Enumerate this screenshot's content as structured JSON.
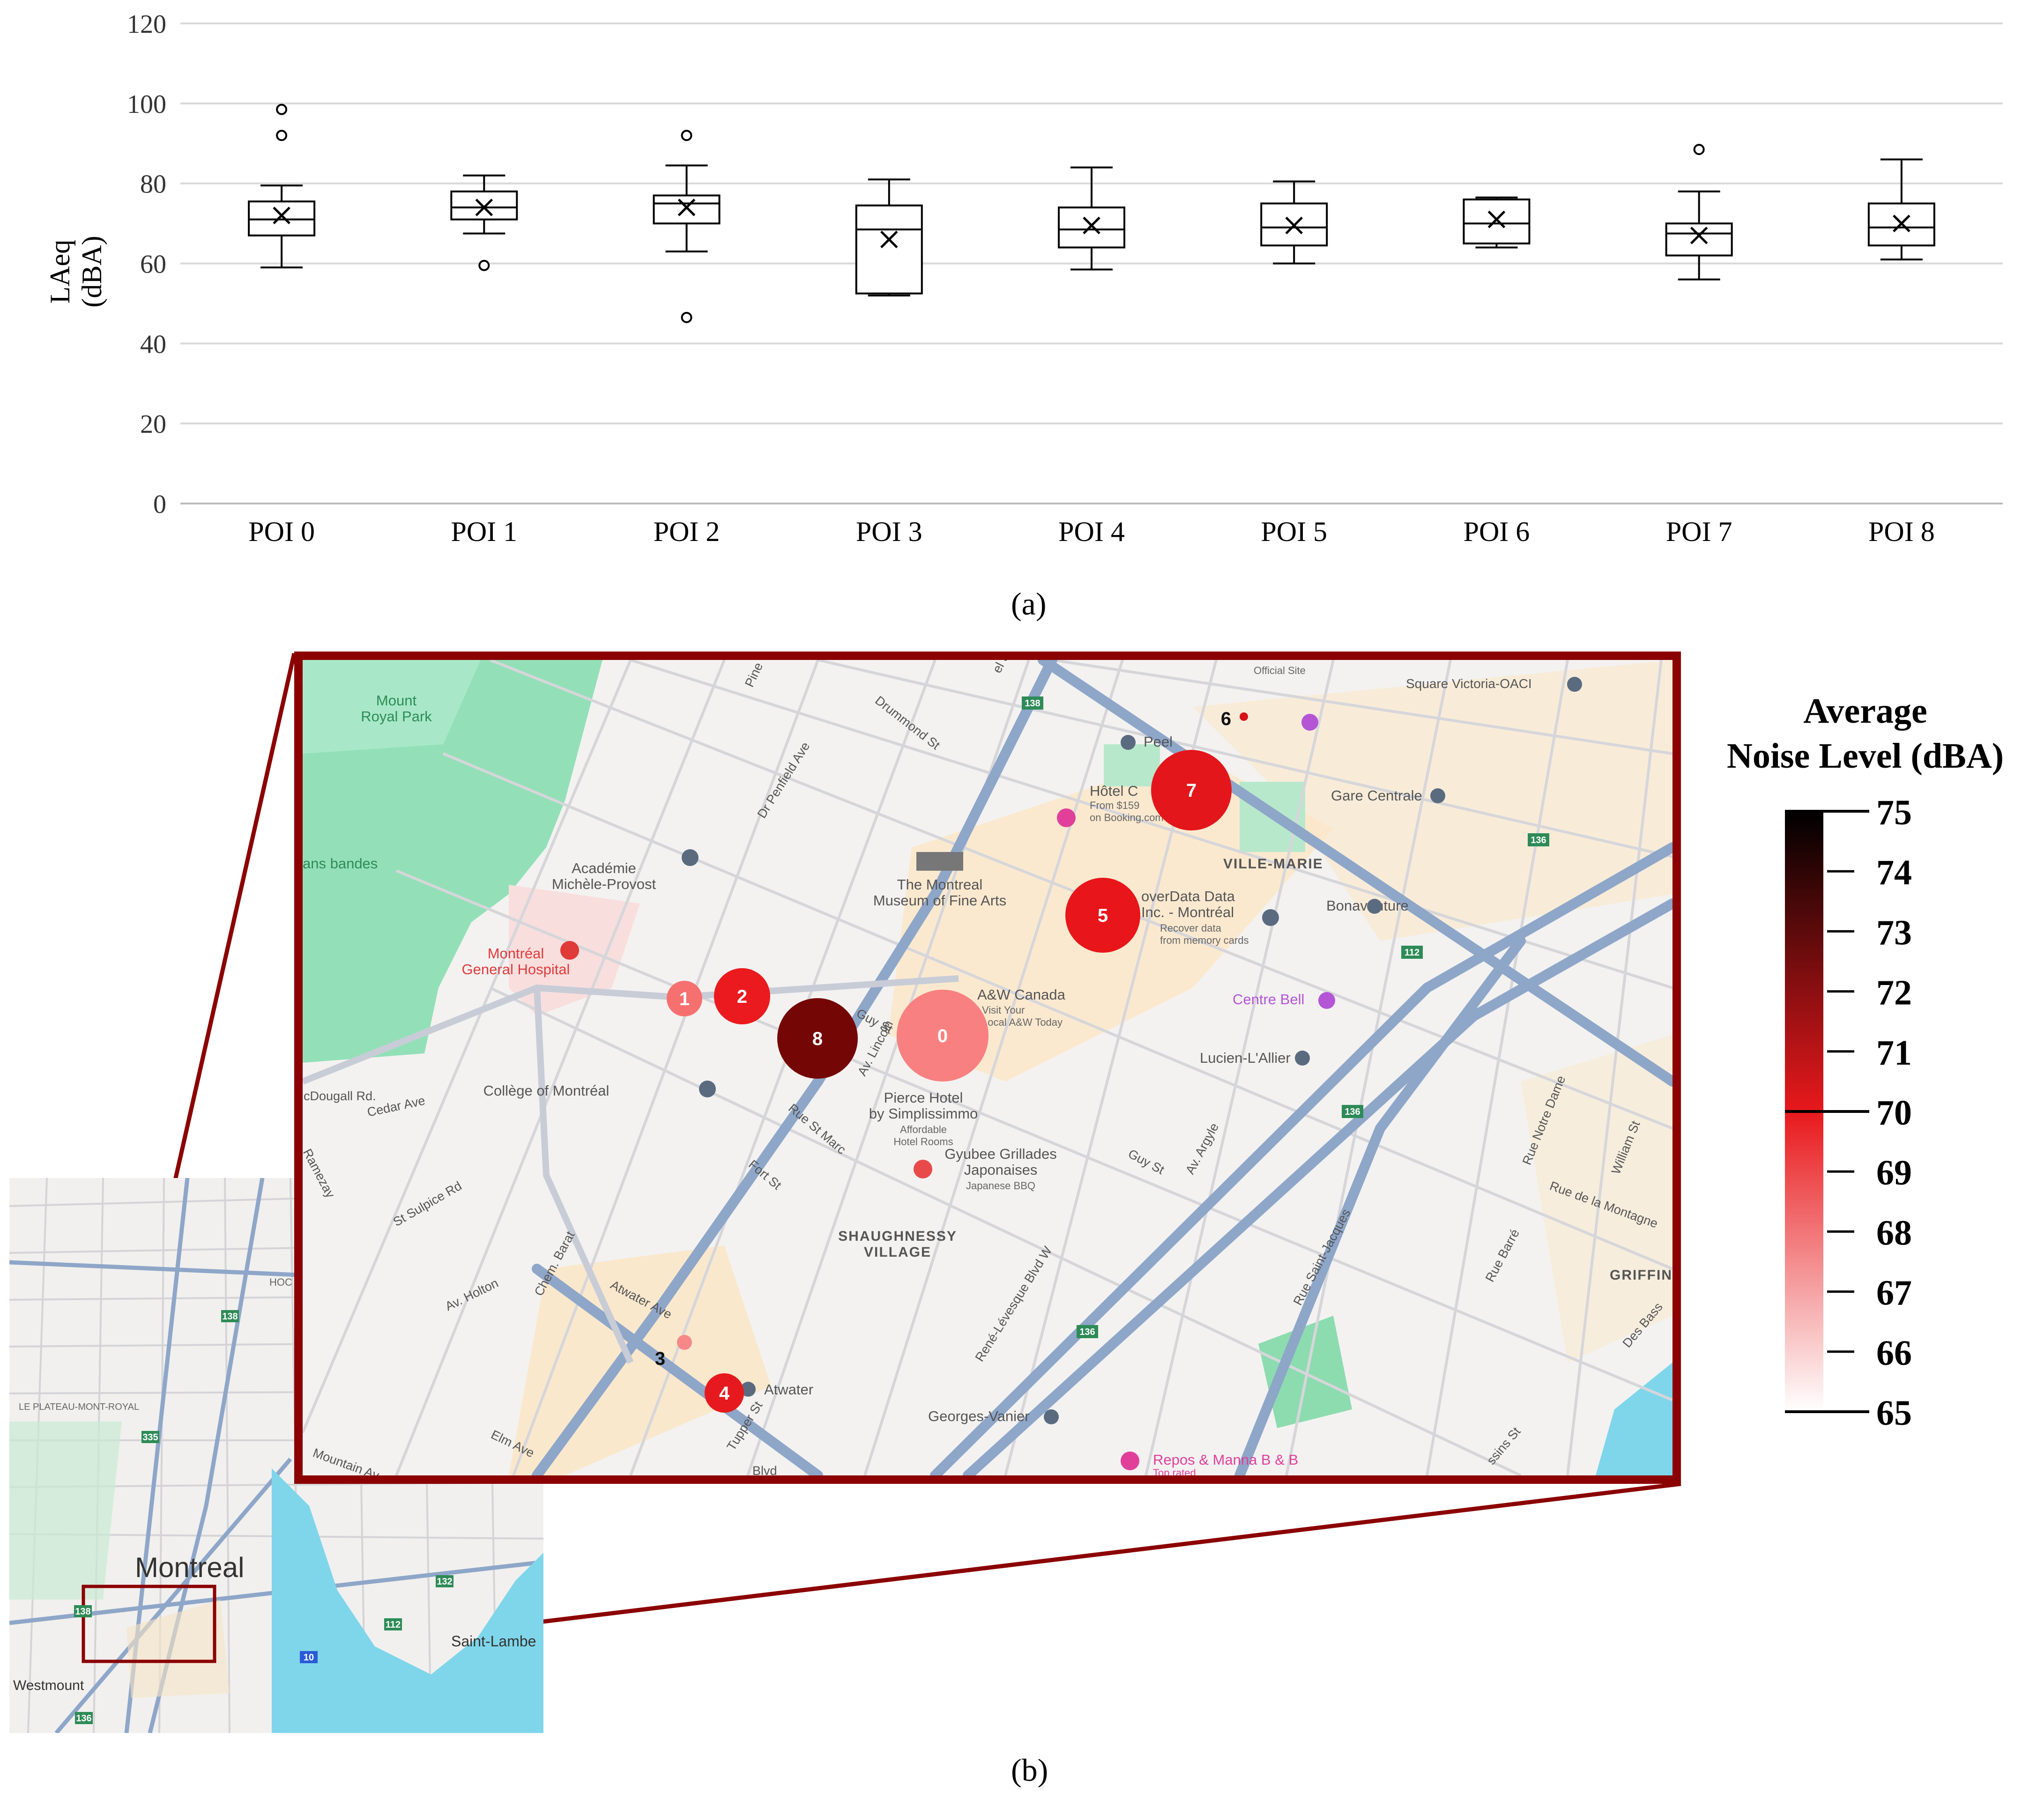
{
  "chart_data": {
    "type": "box",
    "title": "",
    "ylabel_line1": "LAeq",
    "ylabel_line2": "(dBA)",
    "ylim": [
      0,
      120
    ],
    "yticks": [
      0,
      20,
      40,
      60,
      80,
      100,
      120
    ],
    "grid": true,
    "categories": [
      "POI 0",
      "POI 1",
      "POI 2",
      "POI 3",
      "POI 4",
      "POI 5",
      "POI 6",
      "POI 7",
      "POI 8"
    ],
    "boxes": [
      {
        "min": 59,
        "q1": 67,
        "median": 71,
        "q3": 75.5,
        "max": 79.5,
        "mean": 72,
        "outliers": [
          92,
          98.5
        ]
      },
      {
        "min": 67.5,
        "q1": 71,
        "median": 74,
        "q3": 78,
        "max": 82,
        "mean": 74,
        "outliers": [
          59.5
        ]
      },
      {
        "min": 63,
        "q1": 70,
        "median": 75,
        "q3": 77,
        "max": 84.5,
        "mean": 74,
        "outliers": [
          46.5,
          92
        ]
      },
      {
        "min": 52,
        "q1": 52.5,
        "median": 68.5,
        "q3": 74.5,
        "max": 81,
        "mean": 66,
        "outliers": []
      },
      {
        "min": 58.5,
        "q1": 64,
        "median": 68.5,
        "q3": 74,
        "max": 84,
        "mean": 69.5,
        "outliers": []
      },
      {
        "min": 60,
        "q1": 64.5,
        "median": 69,
        "q3": 75,
        "max": 80.5,
        "mean": 69.5,
        "outliers": []
      },
      {
        "min": 64,
        "q1": 65,
        "median": 70,
        "q3": 76,
        "max": 76.5,
        "mean": 71,
        "outliers": []
      },
      {
        "min": 56,
        "q1": 62,
        "median": 67.5,
        "q3": 70,
        "max": 78,
        "mean": 67,
        "outliers": [
          88.5
        ]
      },
      {
        "min": 61,
        "q1": 64.5,
        "median": 69,
        "q3": 75,
        "max": 86,
        "mean": 70,
        "outliers": []
      }
    ]
  },
  "panels": {
    "a": "(a)",
    "b": "(b)"
  },
  "legend": {
    "title_line1": "Average",
    "title_line2": "Noise Level (dBA)",
    "ticks": [
      75,
      74,
      73,
      72,
      71,
      70,
      69,
      68,
      67,
      66,
      65
    ],
    "color_high": "#000000",
    "color_mid": "#e8191c",
    "color_low": "#ffffff"
  },
  "map": {
    "pois": [
      {
        "id": "0",
        "level": 67.5,
        "color": "#f98080"
      },
      {
        "id": "1",
        "level": 68,
        "color": "#f77070"
      },
      {
        "id": "2",
        "level": 70,
        "color": "#ea1a1e"
      },
      {
        "id": "3",
        "level": 67,
        "color": "#f78888"
      },
      {
        "id": "4",
        "level": 70,
        "color": "#e61a1e"
      },
      {
        "id": "5",
        "level": 70,
        "color": "#e8151a"
      },
      {
        "id": "6",
        "level": 71,
        "color": "#d81218"
      },
      {
        "id": "7",
        "level": 70.5,
        "color": "#e3161b"
      },
      {
        "id": "8",
        "level": 74,
        "color": "#750606"
      }
    ],
    "labels": {
      "mount_royal": "Mount\nRoyal Park",
      "academie": "Académie\nMichèle-Provost",
      "hospital": "Montréal\nGeneral Hospital",
      "sans_bandes": "ans bandes",
      "college": "Collège of Montréal",
      "museum": "The Montreal\nMuseum of Fine Arts",
      "aw": "A&W Canada",
      "aw_sub": "Visit Your\nLocal A&W Today",
      "pierce": "Pierce Hotel\nby Simplissimmo",
      "pierce_sub": "Affordable\nHotel Rooms",
      "gyubee": "Gyubee Grillades\nJaponaises",
      "gyubee_sub": "Japanese BBQ",
      "shaughnessy": "SHAUGHNESSY\nVILLAGE",
      "ville_marie": "VILLE-MARIE",
      "peel": "Peel",
      "hotel": "Hôtel C",
      "hotel_sub": "From $159\non Booking.com",
      "recover": "overData Data\nInc. - Montréal",
      "recover_sub": "Recover data\nfrom memory cards",
      "bonaventure": "Bonaventure",
      "centre_bell": "Centre Bell",
      "lucien": "Lucien-L'Allier",
      "gare": "Gare Centrale",
      "square": "Square Victoria-OACI",
      "official": "Official Site",
      "atwater": "Atwater",
      "georges": "Georges-Vanier",
      "repos": "Repos & Manna B & B",
      "repos_sub": "Top rated",
      "griffin": "GRIFFIN",
      "guy_st": "Guy St",
      "guy_st2": "Guy St",
      "rue_st_marc": "Rue St Marc",
      "fort_st": "Fort St",
      "atwater_ave": "Atwater Ave",
      "drummond": "Drummond St",
      "penfield": "Dr Penfield Ave",
      "rene": "René-Lévesque Blvd W",
      "saint_jacques": "Rue Saint-Jacques",
      "notre_dame": "Rue Notre Dame",
      "montagne": "Rue de la Montagne",
      "barre": "Rue Barré",
      "william": "William St",
      "argyle": "Av. Argyle",
      "lincoln": "Av. Lincoln",
      "cedar": "Cedar Ave",
      "sulpice": "St Sulpice Rd",
      "holton": "Av. Holton",
      "barat": "Chem. Barat",
      "elm": "Elm Ave",
      "tupper": "Tupper St",
      "mcdougall": "cDougall Rd.",
      "mountain": "Mountain Av",
      "redpath": "Ramezay",
      "pine": "Pine",
      "peel_st": "el St",
      "des_bassins": "Des Bass",
      "bassins2": "ssins St",
      "blvd": "Blvd",
      "hwy138": "138",
      "hwy136": "136",
      "hwy112": "112"
    },
    "mini_labels": {
      "montreal": "Montreal",
      "westmount": "Westmount",
      "saint_lambert": "Saint-Lambe",
      "plateau": "LE PLATEAU-MONT-ROYAL",
      "hoc": "HOC",
      "hwy138": "138",
      "hwy335": "335",
      "hwy136": "136",
      "hwy132": "132",
      "hwy112": "112",
      "hwy10": "10"
    }
  }
}
